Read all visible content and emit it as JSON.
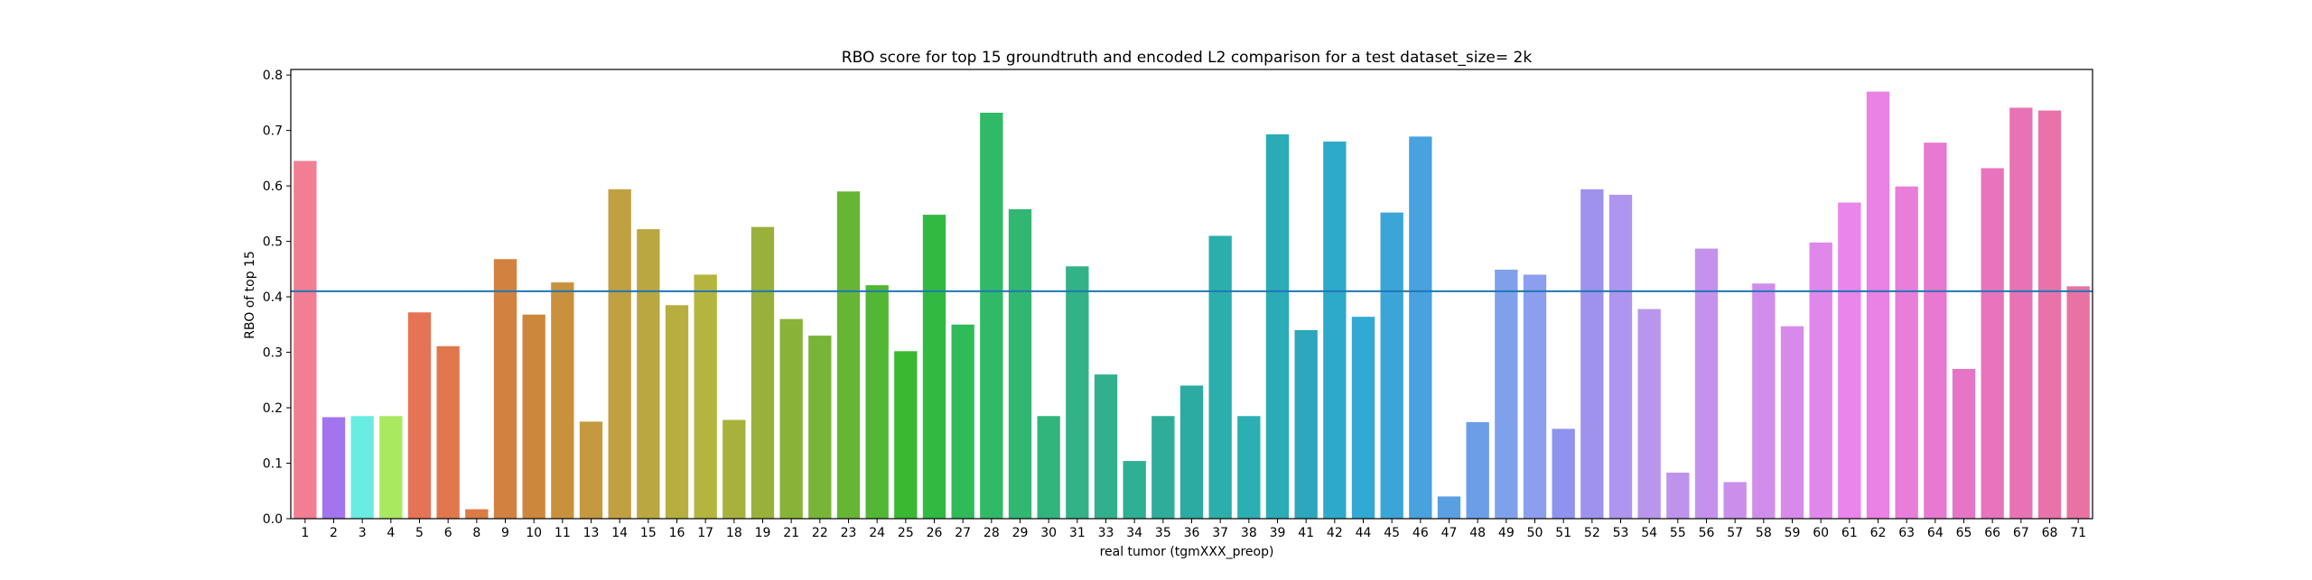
{
  "chart_data": {
    "type": "bar",
    "title": "RBO score for top 15 groundtruth and encoded L2 comparison for a test dataset_size= 2k",
    "xlabel": "real tumor (tgmXXX_preop)",
    "ylabel": "RBO of top 15",
    "ylim": [
      0,
      0.81
    ],
    "yticks": [
      0.0,
      0.1,
      0.2,
      0.3,
      0.4,
      0.5,
      0.6,
      0.7,
      0.8
    ],
    "ytick_labels": [
      "0.0",
      "0.1",
      "0.2",
      "0.3",
      "0.4",
      "0.5",
      "0.6",
      "0.7",
      "0.8"
    ],
    "grid": false,
    "legend": "none",
    "reference_line": {
      "y": 0.41,
      "color": "#1f77b4"
    },
    "categories": [
      "1",
      "2",
      "3",
      "4",
      "5",
      "6",
      "8",
      "9",
      "10",
      "11",
      "13",
      "14",
      "15",
      "16",
      "17",
      "18",
      "19",
      "21",
      "22",
      "23",
      "24",
      "25",
      "26",
      "27",
      "28",
      "29",
      "30",
      "31",
      "33",
      "34",
      "35",
      "36",
      "37",
      "38",
      "39",
      "41",
      "42",
      "44",
      "45",
      "46",
      "47",
      "48",
      "49",
      "50",
      "51",
      "52",
      "53",
      "54",
      "55",
      "56",
      "57",
      "58",
      "59",
      "60",
      "61",
      "62",
      "63",
      "64",
      "65",
      "66",
      "67",
      "68",
      "71"
    ],
    "values": [
      0.645,
      0.183,
      0.185,
      0.185,
      0.372,
      0.311,
      0.017,
      0.468,
      0.368,
      0.426,
      0.175,
      0.594,
      0.522,
      0.385,
      0.44,
      0.178,
      0.526,
      0.36,
      0.33,
      0.59,
      0.421,
      0.302,
      0.548,
      0.35,
      0.732,
      0.558,
      0.185,
      0.455,
      0.26,
      0.104,
      0.185,
      0.24,
      0.51,
      0.185,
      0.693,
      0.34,
      0.68,
      0.364,
      0.552,
      0.689,
      0.04,
      0.174,
      0.449,
      0.44,
      0.162,
      0.594,
      0.584,
      0.378,
      0.083,
      0.487,
      0.066,
      0.424,
      0.347,
      0.498,
      0.57,
      0.77,
      0.599,
      0.678,
      0.27,
      0.632,
      0.741,
      0.736,
      0.419
    ]
  }
}
